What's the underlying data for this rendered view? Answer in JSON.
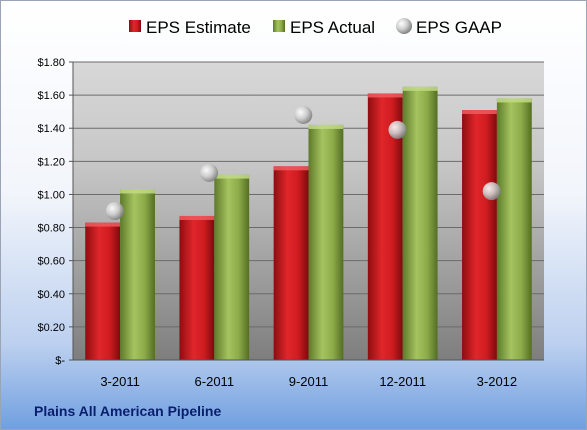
{
  "chart_data": {
    "type": "bar",
    "categories": [
      "3-2011",
      "6-2011",
      "9-2011",
      "12-2011",
      "3-2012"
    ],
    "series": [
      {
        "name": "EPS Estimate",
        "kind": "bar",
        "color": "#d0191f",
        "values": [
          0.83,
          0.87,
          1.17,
          1.61,
          1.51
        ]
      },
      {
        "name": "EPS Actual",
        "kind": "bar",
        "color": "#8fad4a",
        "values": [
          1.03,
          1.12,
          1.42,
          1.65,
          1.58
        ]
      },
      {
        "name": "EPS GAAP",
        "kind": "marker",
        "color": "#c8c8c8",
        "values": [
          0.9,
          1.13,
          1.48,
          1.39,
          1.02
        ]
      }
    ],
    "yticks": [
      "$-",
      "$0.20",
      "$0.40",
      "$0.60",
      "$0.80",
      "$1.00",
      "$1.20",
      "$1.40",
      "$1.60",
      "$1.80"
    ],
    "ylim": [
      0,
      1.8
    ],
    "grid": true,
    "legend_position": "top",
    "caption": "Plains All American Pipeline"
  }
}
